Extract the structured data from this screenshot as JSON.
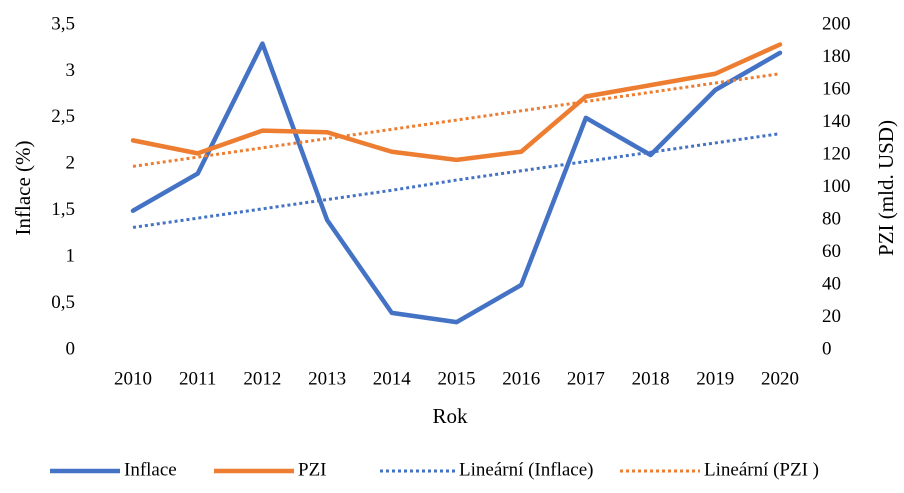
{
  "chart_data": {
    "type": "line",
    "xlabel": "Rok",
    "ylabel": "Inflace (%)",
    "y2label": "PZI (mld. USD)",
    "categories": [
      "2010",
      "2011",
      "2012",
      "2013",
      "2014",
      "2015",
      "2016",
      "2017",
      "2018",
      "2019",
      "2020"
    ],
    "series": [
      {
        "name": "Inflace",
        "color": "#4472c4",
        "style": "solid",
        "axis": "y",
        "values": [
          1.5,
          1.9,
          3.3,
          1.4,
          0.4,
          0.3,
          0.7,
          2.5,
          2.1,
          2.8,
          3.2
        ]
      },
      {
        "name": "PZI",
        "color": "#ed7d31",
        "style": "solid",
        "axis": "y2",
        "values": [
          129,
          121,
          135,
          134,
          122,
          117,
          122,
          156,
          163,
          170,
          188
        ]
      },
      {
        "name": "Lineární (Inflace)",
        "color": "#4472c4",
        "style": "dotted",
        "axis": "y",
        "values": [
          1.32,
          1.42,
          1.52,
          1.62,
          1.72,
          1.83,
          1.93,
          2.03,
          2.13,
          2.23,
          2.33
        ]
      },
      {
        "name": "Lineární (PZI )",
        "color": "#ed7d31",
        "style": "dotted",
        "axis": "y2",
        "values": [
          113,
          118.7,
          124.4,
          130.1,
          135.8,
          141.5,
          147.2,
          152.9,
          158.6,
          164.3,
          170
        ]
      }
    ],
    "ylim": [
      0,
      3.5
    ],
    "yticks": [
      0,
      {
        "value": 0.5,
        "label": "0,5"
      },
      1,
      {
        "value": 1.5,
        "label": "1,5"
      },
      2,
      {
        "value": 2.5,
        "label": "2,5"
      },
      3,
      {
        "value": 3.5,
        "label": "3,5"
      }
    ],
    "y2lim": [
      0,
      200
    ],
    "y2ticks": [
      0,
      20,
      40,
      60,
      80,
      100,
      120,
      140,
      160,
      180,
      200
    ],
    "grid": false,
    "legend": "bottom"
  }
}
